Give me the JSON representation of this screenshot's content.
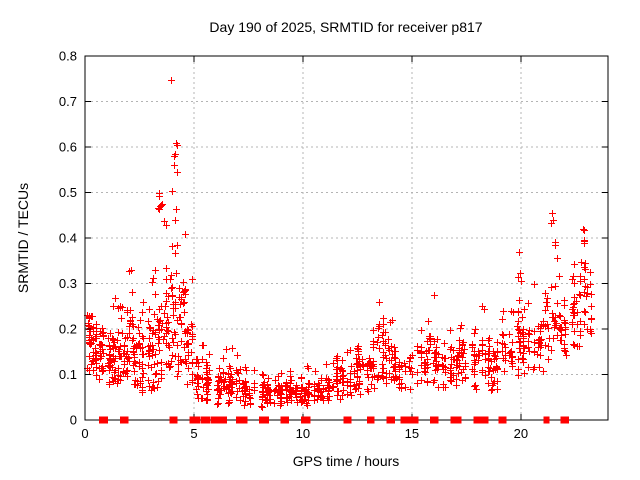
{
  "page": {
    "background": "#ffffff"
  },
  "colors": {
    "marker": "#ff0000",
    "grid": "#b4b4b4",
    "axis": "#000000",
    "background": "#ffffff",
    "text": "#000000"
  },
  "chart_data": {
    "type": "scatter",
    "title": "Day 190 of 2025, SRMTID for receiver p817",
    "xlabel": "GPS time / hours",
    "ylabel": "SRMTID / TECUs",
    "xlim": [
      0,
      24
    ],
    "ylim": [
      0,
      0.8
    ],
    "xticks": {
      "values": [
        0,
        5,
        10,
        15,
        20
      ],
      "labels": [
        "0",
        "5",
        "10",
        "15",
        "20"
      ]
    },
    "yticks": {
      "values": [
        0,
        0.1,
        0.2,
        0.3,
        0.4,
        0.5,
        0.6,
        0.7,
        0.8
      ],
      "labels": [
        "0",
        "0.1",
        "0.2",
        "0.3",
        "0.4",
        "0.5",
        "0.6",
        "0.7",
        "0.8"
      ]
    },
    "xgrid": [
      5,
      10,
      15,
      20
    ],
    "ygrid": [
      0.1,
      0.2,
      0.3,
      0.4,
      0.5,
      0.6,
      0.7
    ],
    "grid": true,
    "legend": "none",
    "marker": {
      "shape": "plus",
      "color": "#ff0000",
      "size": 7
    },
    "seed": 190817,
    "bins_schema": [
      "hour_start",
      "hour_end",
      "ymin",
      "ymedian",
      "ymax",
      "count"
    ],
    "density_bins": [
      [
        0.0,
        0.3,
        0.1,
        0.17,
        0.23,
        26
      ],
      [
        0.3,
        0.6,
        0.09,
        0.15,
        0.22,
        26
      ],
      [
        0.6,
        0.9,
        0.08,
        0.14,
        0.21,
        24
      ],
      [
        0.9,
        1.2,
        0.07,
        0.12,
        0.2,
        24
      ],
      [
        1.2,
        1.5,
        0.07,
        0.13,
        0.27,
        24
      ],
      [
        1.5,
        1.9,
        0.08,
        0.14,
        0.25,
        28
      ],
      [
        1.9,
        2.2,
        0.08,
        0.17,
        0.335,
        26
      ],
      [
        2.2,
        2.6,
        0.06,
        0.12,
        0.22,
        28
      ],
      [
        2.6,
        3.0,
        0.05,
        0.12,
        0.26,
        28
      ],
      [
        3.0,
        3.3,
        0.05,
        0.14,
        0.34,
        24
      ],
      [
        3.3,
        3.6,
        0.06,
        0.17,
        0.5,
        26
      ],
      [
        3.6,
        3.9,
        0.08,
        0.19,
        0.44,
        24
      ],
      [
        3.9,
        4.3,
        0.08,
        0.24,
        0.61,
        34
      ],
      [
        4.3,
        4.6,
        0.1,
        0.21,
        0.42,
        26
      ],
      [
        4.6,
        5.0,
        0.06,
        0.14,
        0.32,
        28
      ],
      [
        5.0,
        5.4,
        0.04,
        0.09,
        0.17,
        24
      ],
      [
        5.4,
        5.8,
        0.035,
        0.08,
        0.15,
        22
      ],
      [
        5.8,
        6.2,
        0.03,
        0.065,
        0.12,
        18
      ],
      [
        6.2,
        6.6,
        0.03,
        0.07,
        0.16,
        22
      ],
      [
        6.6,
        7.2,
        0.035,
        0.08,
        0.16,
        30
      ],
      [
        7.2,
        7.8,
        0.03,
        0.06,
        0.12,
        30
      ],
      [
        7.8,
        8.4,
        0.025,
        0.055,
        0.11,
        30
      ],
      [
        8.4,
        9.0,
        0.03,
        0.055,
        0.1,
        30
      ],
      [
        9.0,
        9.6,
        0.03,
        0.06,
        0.11,
        30
      ],
      [
        9.6,
        10.2,
        0.03,
        0.055,
        0.1,
        30
      ],
      [
        10.2,
        10.8,
        0.035,
        0.06,
        0.12,
        30
      ],
      [
        10.8,
        11.4,
        0.04,
        0.07,
        0.13,
        30
      ],
      [
        11.4,
        12.0,
        0.04,
        0.08,
        0.15,
        30
      ],
      [
        12.0,
        12.5,
        0.05,
        0.09,
        0.16,
        26
      ],
      [
        12.5,
        13.0,
        0.05,
        0.1,
        0.17,
        26
      ],
      [
        13.0,
        13.4,
        0.06,
        0.12,
        0.2,
        22
      ],
      [
        13.4,
        13.8,
        0.08,
        0.15,
        0.27,
        24
      ],
      [
        13.8,
        14.2,
        0.07,
        0.13,
        0.22,
        22
      ],
      [
        14.2,
        14.6,
        0.06,
        0.1,
        0.16,
        20
      ],
      [
        14.6,
        15.2,
        0.06,
        0.1,
        0.15,
        14
      ],
      [
        15.2,
        15.7,
        0.07,
        0.12,
        0.2,
        24
      ],
      [
        15.7,
        16.1,
        0.07,
        0.13,
        0.28,
        22
      ],
      [
        16.1,
        16.6,
        0.06,
        0.11,
        0.18,
        24
      ],
      [
        16.6,
        17.1,
        0.07,
        0.12,
        0.2,
        24
      ],
      [
        17.1,
        17.6,
        0.07,
        0.13,
        0.22,
        24
      ],
      [
        17.6,
        18.1,
        0.06,
        0.12,
        0.2,
        24
      ],
      [
        18.1,
        18.6,
        0.07,
        0.13,
        0.25,
        24
      ],
      [
        18.6,
        19.1,
        0.06,
        0.11,
        0.18,
        24
      ],
      [
        19.1,
        19.6,
        0.08,
        0.14,
        0.25,
        24
      ],
      [
        19.6,
        20.1,
        0.09,
        0.17,
        0.33,
        26
      ],
      [
        20.1,
        20.6,
        0.09,
        0.15,
        0.26,
        26
      ],
      [
        20.6,
        21.1,
        0.1,
        0.16,
        0.3,
        26
      ],
      [
        21.1,
        21.7,
        0.11,
        0.19,
        0.4,
        28
      ],
      [
        21.7,
        22.2,
        0.13,
        0.2,
        0.32,
        26
      ],
      [
        22.2,
        22.7,
        0.15,
        0.23,
        0.35,
        26
      ],
      [
        22.7,
        23.0,
        0.17,
        0.27,
        0.42,
        20
      ],
      [
        23.0,
        23.25,
        0.18,
        0.25,
        0.33,
        14
      ]
    ],
    "outliers": [
      [
        3.94,
        0.748
      ],
      [
        4.16,
        0.609
      ],
      [
        4.12,
        0.585
      ],
      [
        4.07,
        0.56
      ],
      [
        4.2,
        0.545
      ],
      [
        3.38,
        0.5
      ],
      [
        3.42,
        0.47
      ],
      [
        21.42,
        0.455
      ],
      [
        21.47,
        0.44
      ],
      [
        21.38,
        0.433
      ],
      [
        22.86,
        0.42
      ],
      [
        22.9,
        0.39
      ],
      [
        21.55,
        0.385
      ],
      [
        19.9,
        0.37
      ]
    ],
    "zero_marker_segments": [
      [
        0.72,
        0.98
      ],
      [
        1.67,
        1.93
      ],
      [
        3.95,
        4.0
      ],
      [
        4.12,
        4.18
      ],
      [
        4.87,
        5.23
      ],
      [
        5.4,
        5.47
      ],
      [
        5.52,
        5.58
      ],
      [
        5.63,
        5.7
      ],
      [
        5.85,
        6.45
      ],
      [
        7.0,
        7.38
      ],
      [
        8.06,
        8.37
      ],
      [
        9.05,
        9.3
      ],
      [
        9.98,
        10.28
      ],
      [
        11.94,
        12.0
      ],
      [
        12.1,
        12.17
      ],
      [
        13.0,
        13.06
      ],
      [
        13.16,
        13.22
      ],
      [
        13.9,
        14.15
      ],
      [
        14.55,
        15.06
      ],
      [
        15.1,
        15.24
      ],
      [
        15.9,
        16.15
      ],
      [
        16.84,
        17.2
      ],
      [
        17.9,
        18.2
      ],
      [
        18.26,
        18.32
      ],
      [
        18.38,
        18.44
      ],
      [
        19.04,
        19.1
      ],
      [
        19.2,
        19.27
      ],
      [
        21.1,
        21.24
      ],
      [
        21.9,
        21.97
      ],
      [
        22.08,
        22.15
      ]
    ]
  }
}
